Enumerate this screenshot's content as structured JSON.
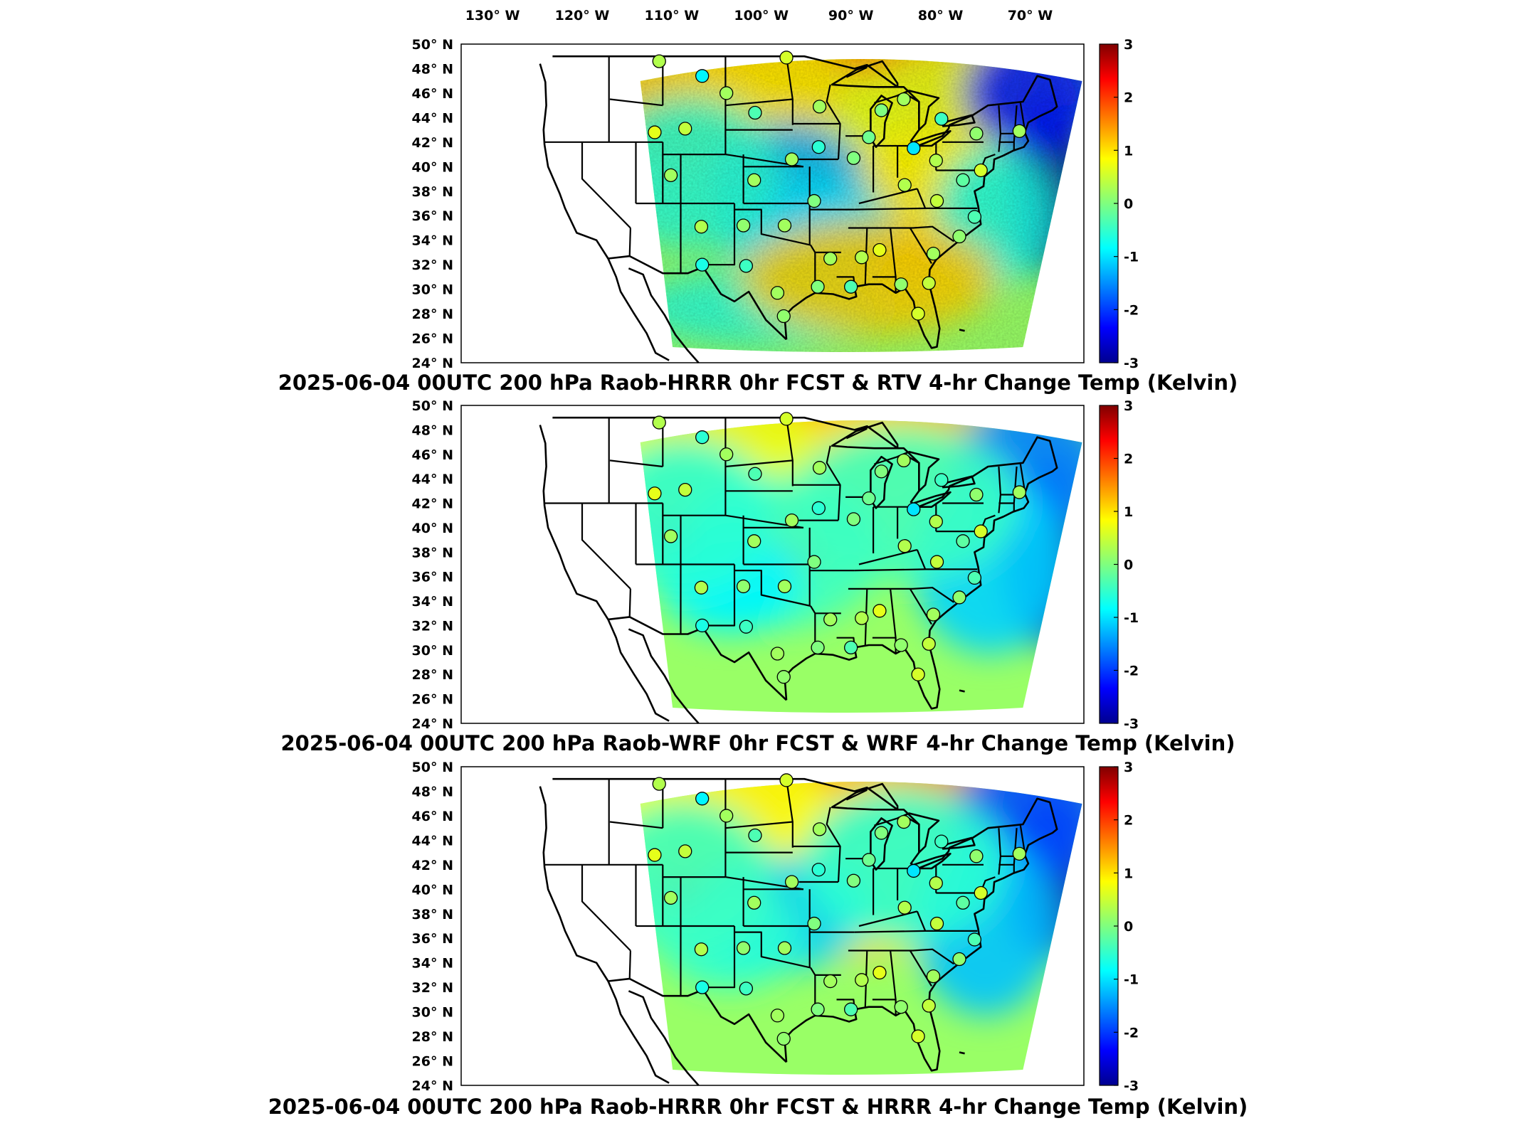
{
  "lon_labels": [
    "130° W",
    "120° W",
    "110° W",
    "100° W",
    "90° W",
    "80° W",
    "70° W"
  ],
  "lat_labels": [
    "50° N",
    "48° N",
    "46° N",
    "44° N",
    "42° N",
    "40° N",
    "38° N",
    "36° N",
    "34° N",
    "32° N",
    "30° N",
    "28° N",
    "26° N",
    "24° N"
  ],
  "colorbar": {
    "ticks": [
      "3",
      "2",
      "1",
      "0",
      "-1",
      "-2",
      "-3"
    ],
    "range": [
      -3,
      3
    ],
    "colormap": "jet",
    "units": "Kelvin"
  },
  "panels": [
    {
      "title": "2025-06-04 00UTC 200 hPa Raob-HRRR 0hr FCST & RTV 4-hr Change Temp (Kelvin)",
      "variant": "rtv",
      "station_values": [
        0.3,
        -0.8,
        0.2,
        0.4,
        0.6,
        -0.3,
        0.5,
        0.2,
        0.0,
        0.2,
        -0.4,
        0.1,
        0.2,
        0.5,
        -0.2,
        0.3,
        -0.9,
        -0.1,
        -0.5,
        0.2,
        0.0,
        0.3,
        0.4,
        -0.3,
        0.1,
        0.2,
        0.4,
        0.5,
        0.1,
        0.6,
        0.3,
        0.2,
        -0.3,
        0.0,
        0.1,
        0.2,
        -0.4,
        -0.6,
        0.3,
        0.1,
        0.2,
        0.0
      ]
    },
    {
      "title": "2025-06-04 00UTC 200 hPa Raob-WRF 0hr FCST & WRF 4-hr Change Temp (Kelvin)",
      "variant": "wrf",
      "station_values": [
        0.3,
        -0.5,
        0.2,
        0.4,
        0.6,
        -0.3,
        0.5,
        0.2,
        0.0,
        0.2,
        -0.4,
        0.1,
        0.2,
        0.5,
        -0.2,
        0.3,
        -0.9,
        -0.1,
        -0.5,
        0.2,
        0.0,
        0.3,
        0.4,
        -0.3,
        0.1,
        0.2,
        0.4,
        0.5,
        0.1,
        0.6,
        0.3,
        0.2,
        -0.3,
        0.0,
        0.1,
        0.2,
        -0.4,
        -0.6,
        0.3,
        0.1,
        0.2,
        0.0
      ]
    },
    {
      "title": "2025-06-04 00UTC 200 hPa Raob-HRRR 0hr FCST & HRRR 4-hr Change Temp (Kelvin)",
      "variant": "hrrr",
      "station_values": [
        0.3,
        -0.8,
        0.2,
        0.4,
        0.6,
        -0.3,
        0.5,
        0.2,
        0.0,
        0.2,
        -0.4,
        0.1,
        0.2,
        0.5,
        -0.2,
        0.3,
        -0.9,
        -0.1,
        -0.5,
        0.2,
        0.0,
        0.3,
        0.4,
        -0.3,
        0.1,
        0.2,
        0.4,
        0.5,
        0.1,
        0.6,
        0.3,
        0.2,
        -0.3,
        0.0,
        0.1,
        0.2,
        -0.4,
        -0.6,
        0.3,
        0.1,
        0.2,
        0.0
      ]
    }
  ]
}
